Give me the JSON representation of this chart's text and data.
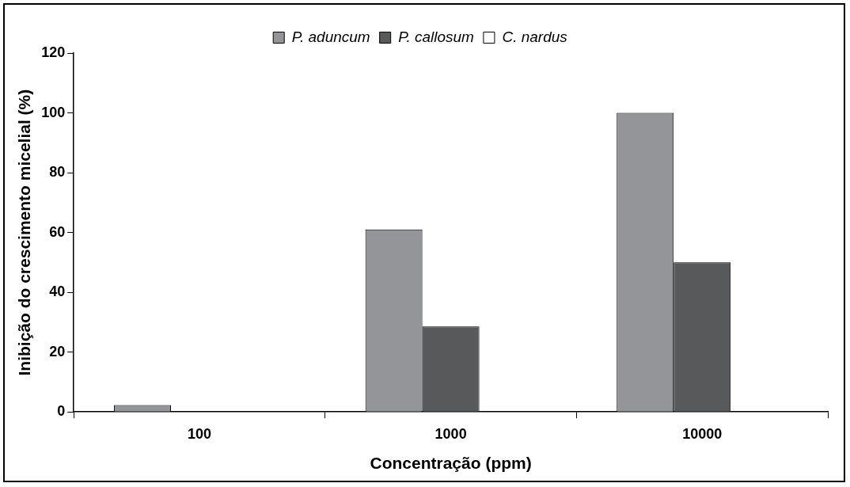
{
  "chart_data": {
    "type": "bar",
    "xlabel": "Concentração (ppm)",
    "ylabel": "Inibição do crescimento micelial (%)",
    "categories": [
      "100",
      "1000",
      "10000"
    ],
    "series": [
      {
        "name": "P. aduncum",
        "color": "#939598",
        "values": [
          2.3,
          61,
          100
        ]
      },
      {
        "name": "P. callosum",
        "color": "#58595b",
        "values": [
          0,
          28.6,
          50
        ]
      },
      {
        "name": "C. nardus",
        "color": "#ffffff",
        "values": [
          0,
          0,
          0
        ]
      }
    ],
    "ylim": [
      0,
      120
    ],
    "yticks": [
      0,
      20,
      40,
      60,
      80,
      100,
      120
    ],
    "grid": false,
    "legend": "top"
  }
}
